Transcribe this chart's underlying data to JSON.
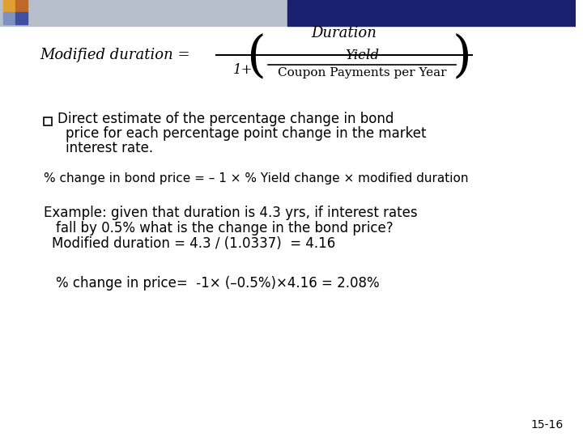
{
  "bg_color": "#ffffff",
  "sq_colors": [
    "#e0a030",
    "#c06828",
    "#8090c0",
    "#4050a0"
  ],
  "bullet_text_line1": "Direct estimate of the percentage change in bond",
  "bullet_text_line2": "price for each percentage point change in the market",
  "bullet_text_line3": "interest rate.",
  "formula2": "% change in bond price = – 1 × % Yield change × modified duration",
  "example_line1": "Example: given that duration is 4.3 yrs, if interest rates",
  "example_line2": "fall by 0.5% what is the change in the bond price?",
  "example_line3": "Modified duration = 4.3 / (1.0337)  = 4.16",
  "pct_change_line": "% change in price=  -1× (–0.5%)×4.16 = 2.08%",
  "slide_number": "15-16"
}
